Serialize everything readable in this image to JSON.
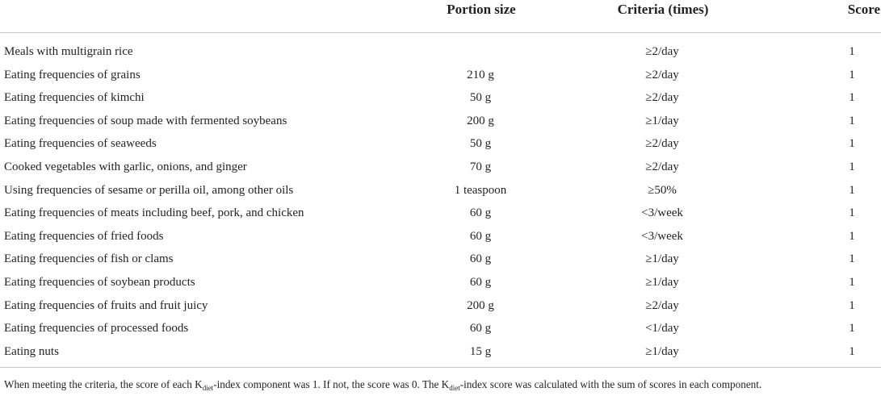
{
  "table": {
    "headers": {
      "component": "",
      "portion": "Portion size",
      "criteria": "Criteria (times)",
      "score": "Score"
    },
    "rows": [
      {
        "component": "Meals with multigrain rice",
        "portion": "",
        "criteria": "≥2/day",
        "score": "1"
      },
      {
        "component": "Eating frequencies of grains",
        "portion": "210 g",
        "criteria": "≥2/day",
        "score": "1"
      },
      {
        "component": "Eating frequencies of kimchi",
        "portion": "50 g",
        "criteria": "≥2/day",
        "score": "1"
      },
      {
        "component": "Eating frequencies of soup made with fermented soybeans",
        "portion": "200 g",
        "criteria": "≥1/day",
        "score": "1"
      },
      {
        "component": "Eating frequencies of seaweeds",
        "portion": "50 g",
        "criteria": "≥2/day",
        "score": "1"
      },
      {
        "component": "Cooked vegetables with garlic, onions, and ginger",
        "portion": "70 g",
        "criteria": "≥2/day",
        "score": "1"
      },
      {
        "component": "Using frequencies of sesame or perilla oil, among other oils",
        "portion": "1 teaspoon",
        "criteria": "≥50%",
        "score": "1"
      },
      {
        "component": "Eating frequencies of meats including beef, pork, and chicken",
        "portion": "60 g",
        "criteria": "<3/week",
        "score": "1"
      },
      {
        "component": "Eating frequencies of fried foods",
        "portion": "60 g",
        "criteria": "<3/week",
        "score": "1"
      },
      {
        "component": "Eating frequencies of fish or clams",
        "portion": "60 g",
        "criteria": "≥1/day",
        "score": "1"
      },
      {
        "component": "Eating frequencies of soybean products",
        "portion": "60 g",
        "criteria": "≥1/day",
        "score": "1"
      },
      {
        "component": "Eating frequencies of fruits and fruit juicy",
        "portion": "200 g",
        "criteria": "≥2/day",
        "score": "1"
      },
      {
        "component": "Eating frequencies of processed foods",
        "portion": "60 g",
        "criteria": "<1/day",
        "score": "1"
      },
      {
        "component": "Eating nuts",
        "portion": "15 g",
        "criteria": "≥1/day",
        "score": "1"
      }
    ]
  },
  "footnote": {
    "part1": "When meeting the criteria, the score of each K",
    "sub1": "diet",
    "part2": "-index component was 1. If not, the score was 0. The K",
    "sub2": "diet",
    "part3": "-index score was calculated with the sum of scores in each component."
  }
}
